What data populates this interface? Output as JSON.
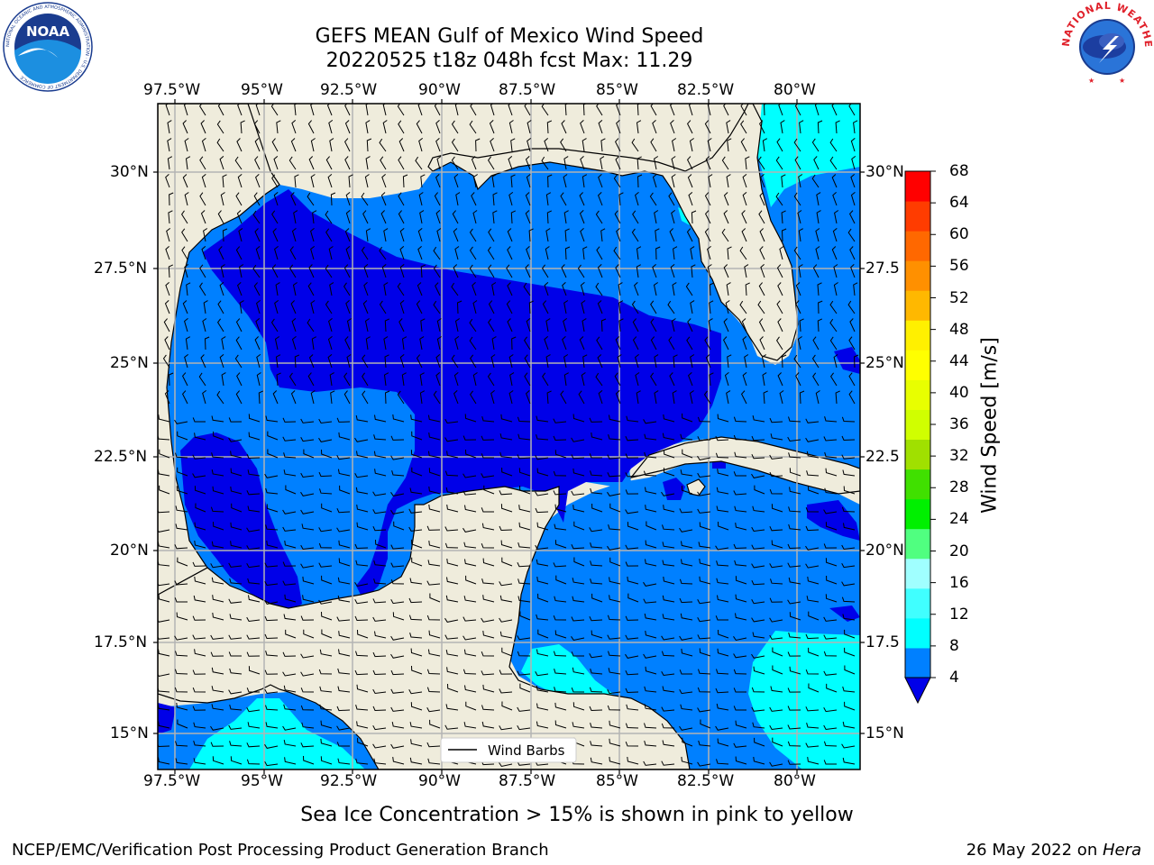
{
  "title": {
    "line1": "GEFS MEAN Gulf of Mexico Wind Speed",
    "line2": "20220525 t18z 048h fcst   Max: 11.29"
  },
  "map": {
    "lon_labels": [
      "97.5°W",
      "95°W",
      "92.5°W",
      "90°W",
      "87.5°W",
      "85°W",
      "82.5°W",
      "80°W"
    ],
    "lat_labels_left": [
      "30°N",
      "27.5°N",
      "25°N",
      "22.5°N",
      "20°N",
      "17.5°N",
      "15°N"
    ],
    "lat_labels_right": [
      "30°N",
      "27.5",
      "25°N",
      "22.5",
      "20°N",
      "17.5",
      "15°N"
    ],
    "legend_label": "Wind Barbs",
    "colors": {
      "land": "#efecdc",
      "gridline": "#b3b3b3",
      "coastline": "#000000",
      "speed_4_8": "#0080ff",
      "speed_8_12": "#00ffff",
      "speed_below_4": "#0000e8"
    }
  },
  "colorbar": {
    "label": "Wind Speed [m/s]",
    "ticks": [
      "68",
      "64",
      "60",
      "56",
      "52",
      "48",
      "44",
      "40",
      "36",
      "32",
      "28",
      "24",
      "20",
      "16",
      "12",
      "8",
      "4"
    ],
    "colors": [
      "#0080ff",
      "#00ffff",
      "#40ffff",
      "#a0ffff",
      "#50ff80",
      "#00f000",
      "#40e000",
      "#a0e000",
      "#d0ff00",
      "#e8ff00",
      "#ffff00",
      "#fff000",
      "#ffb800",
      "#ff9000",
      "#ff6800",
      "#ff3c00",
      "#ff0000"
    ],
    "extend_color": "#0000e8"
  },
  "subtitle": "Sea Ice Concentration > 15% is shown in pink to yellow",
  "footer": {
    "left": "NCEP/EMC/Verification Post Processing Product Generation Branch",
    "right_prefix": "26 May 2022 on ",
    "right_host": "Hera"
  },
  "logos": {
    "noaa_text": "NOAA",
    "noaa_ring": "NATIONAL OCEANIC AND ATMOSPHERIC ADMINISTRATION · U.S. DEPARTMENT OF COMMERCE",
    "nws_ring": "NATIONAL WEATHER SERVICE"
  }
}
